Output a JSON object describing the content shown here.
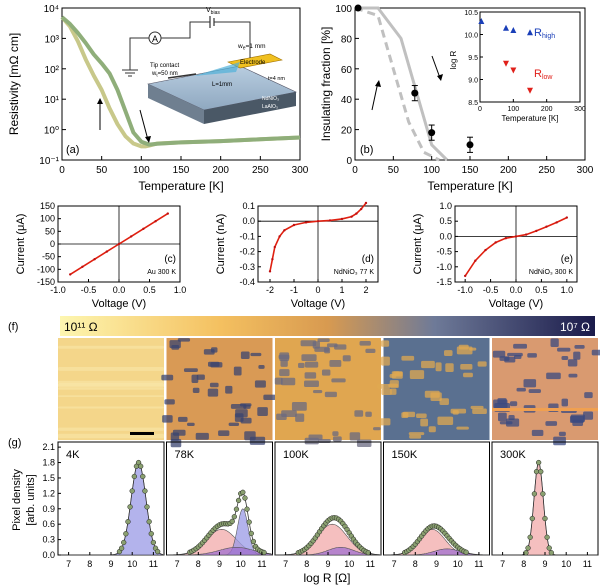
{
  "panel_a": {
    "tag": "(a)",
    "ylabel": "Resistivity [mΩ cm]",
    "xlabel": "Temperature [K]",
    "xticks": [
      "0",
      "50",
      "100",
      "150",
      "200",
      "250",
      "300"
    ],
    "yticks": [
      "10⁻¹",
      "10⁰",
      "10¹",
      "10²",
      "10³",
      "10⁴"
    ],
    "inset": {
      "v_label": "V",
      "v_sub": "bias",
      "amp_label": "A",
      "electrode_label": "Electrode",
      "w_label": "w",
      "w_sub": "e",
      "w_val": "=1 mm",
      "tip_label": "Tip contact",
      "wt_label": "w",
      "wt_sub": "t",
      "wt_val": "=50 nm",
      "l_label": "L=1mm",
      "t_label": "t=4 nm",
      "film_label": "NdNiO₃",
      "sub_label": "LaAlO₃"
    },
    "chart_data": {
      "type": "line",
      "title": "",
      "xlabel": "Temperature [K]",
      "ylabel": "Resistivity [mΩ cm]",
      "xlim": [
        0,
        300
      ],
      "ylim": [
        0.1,
        10000
      ],
      "yscale": "log",
      "series": [
        {
          "name": "cooling",
          "x": [
            0,
            10,
            20,
            30,
            40,
            50,
            60,
            70,
            80,
            90,
            100,
            105,
            110,
            115,
            120,
            150,
            200,
            250,
            300
          ],
          "y": [
            5000,
            2500,
            800,
            200,
            60,
            20,
            5,
            1.5,
            0.6,
            0.35,
            0.28,
            0.28,
            0.3,
            0.32,
            0.35,
            0.38,
            0.42,
            0.48,
            0.55
          ]
        },
        {
          "name": "warming",
          "x": [
            0,
            10,
            20,
            30,
            40,
            50,
            60,
            70,
            80,
            90,
            100,
            110,
            120,
            150,
            200,
            250,
            300
          ],
          "y": [
            5000,
            3000,
            1500,
            700,
            300,
            150,
            70,
            20,
            4,
            0.8,
            0.4,
            0.32,
            0.34,
            0.38,
            0.42,
            0.48,
            0.55
          ]
        }
      ]
    }
  },
  "panel_b": {
    "tag": "(b)",
    "ylabel": "Insulating fraction [%]",
    "xlabel": "Temperature [K]",
    "xticks": [
      "0",
      "50",
      "100",
      "150",
      "200",
      "250",
      "300"
    ],
    "yticks": [
      "0",
      "20",
      "40",
      "60",
      "80",
      "100"
    ],
    "chart_data": {
      "type": "scatter",
      "xlim": [
        0,
        300
      ],
      "ylim": [
        0,
        100
      ],
      "points": [
        {
          "x": 4,
          "y": 100,
          "err": 0
        },
        {
          "x": 78,
          "y": 44,
          "err": 5
        },
        {
          "x": 100,
          "y": 18,
          "err": 5
        },
        {
          "x": 150,
          "y": 10,
          "err": 5
        }
      ],
      "curves": [
        {
          "name": "solid",
          "x": [
            0,
            30,
            60,
            80,
            100,
            120
          ],
          "y": [
            100,
            100,
            80,
            45,
            10,
            0
          ]
        },
        {
          "name": "dashed",
          "x": [
            0,
            30,
            50,
            70,
            90,
            110
          ],
          "y": [
            100,
            95,
            60,
            25,
            5,
            0
          ]
        }
      ]
    },
    "inset": {
      "ylabel": "log R",
      "xlabel": "Temperature [K]",
      "xticks": [
        "0",
        "100",
        "200",
        "300"
      ],
      "yticks": [
        "8.5",
        "9.0",
        "9.5",
        "10.0",
        "10.5"
      ],
      "r_high": "R",
      "r_high_sub": "high",
      "r_low": "R",
      "r_low_sub": "low",
      "chart_data": {
        "type": "scatter",
        "xlim": [
          0,
          300
        ],
        "ylim": [
          8.5,
          10.5
        ],
        "series": [
          {
            "name": "R_high",
            "x": [
              4,
              78,
              100,
              150
            ],
            "y": [
              10.3,
              10.15,
              10.1,
              10.05
            ]
          },
          {
            "name": "R_low",
            "x": [
              78,
              100,
              150
            ],
            "y": [
              9.35,
              9.2,
              8.75
            ]
          }
        ]
      }
    }
  },
  "iv_panels": [
    {
      "tag": "(c)",
      "label": "Au 300 K",
      "ylabel": "Current (μA)",
      "xlabel": "Voltage (V)",
      "xticks": [
        "-1.0",
        "-0.5",
        "0.0",
        "0.5",
        "1.0"
      ],
      "yticks": [
        "150",
        "100",
        "50",
        "0",
        "-50",
        "-100",
        "-150"
      ],
      "chart_data": {
        "type": "line",
        "xlim": [
          -1.0,
          1.0
        ],
        "ylim": [
          -150,
          150
        ],
        "x": [
          -0.8,
          -0.6,
          -0.4,
          -0.2,
          0,
          0.2,
          0.4,
          0.6,
          0.8
        ],
        "y": [
          -120,
          -90,
          -60,
          -30,
          0,
          30,
          60,
          90,
          120
        ]
      }
    },
    {
      "tag": "(d)",
      "label": "NdNiO₃ 77 K",
      "ylabel": "Current (nA)",
      "xlabel": "Voltage (V)",
      "xticks": [
        "-2",
        "-1",
        "0",
        "1",
        "2"
      ],
      "yticks": [
        "0.1",
        "0.0",
        "-0.1",
        "-0.2",
        "-0.3",
        "-0.4"
      ],
      "chart_data": {
        "type": "line",
        "xlim": [
          -2.5,
          2.5
        ],
        "ylim": [
          -0.4,
          0.1
        ],
        "x": [
          -2.0,
          -1.9,
          -1.8,
          -1.6,
          -1.4,
          -1.0,
          -0.5,
          0,
          0.5,
          1.0,
          1.4,
          1.6,
          1.8,
          2.0
        ],
        "y": [
          -0.33,
          -0.25,
          -0.17,
          -0.1,
          -0.06,
          -0.025,
          -0.008,
          0,
          0.005,
          0.015,
          0.03,
          0.05,
          0.08,
          0.12
        ]
      }
    },
    {
      "tag": "(e)",
      "label": "NdNiO₃ 300 K",
      "ylabel": "Current (μA)",
      "xlabel": "Voltage (V)",
      "xticks": [
        "-1.0",
        "-0.5",
        "0.0",
        "0.5",
        "1.0"
      ],
      "yticks": [
        "1.0",
        "0.5",
        "0.0",
        "-0.5",
        "-1.0",
        "-1.5"
      ],
      "chart_data": {
        "type": "line",
        "xlim": [
          -1.2,
          1.2
        ],
        "ylim": [
          -1.5,
          1.0
        ],
        "x": [
          -1.0,
          -0.8,
          -0.6,
          -0.4,
          -0.2,
          0,
          0.2,
          0.4,
          0.6,
          0.8,
          1.0
        ],
        "y": [
          -1.3,
          -0.8,
          -0.45,
          -0.2,
          -0.06,
          0,
          0.06,
          0.18,
          0.32,
          0.46,
          0.62
        ]
      }
    }
  ],
  "colorbar": {
    "tag": "(f)",
    "low_label": "10¹¹ Ω",
    "high_label": "10⁷ Ω"
  },
  "maps": [
    "4K",
    "78K",
    "100K",
    "150K",
    "300K"
  ],
  "hist": {
    "tag": "(g)",
    "ylabel_line1": "Pixel density",
    "ylabel_line2": "[arb. units]",
    "xlabel": "log R [Ω]",
    "yticks": [
      "0.0",
      "0.3",
      "0.6",
      "0.9",
      "1.2",
      "1.5",
      "1.8",
      "2.1"
    ],
    "xticks": [
      "7",
      "8",
      "9",
      "10",
      "11"
    ],
    "panels": [
      {
        "label": "4K",
        "chart_data": {
          "type": "area",
          "components": [
            {
              "color": "#9a9ae6",
              "center": 10.3,
              "sigma": 0.35,
              "amp": 1.8
            }
          ]
        }
      },
      {
        "label": "78K",
        "chart_data": {
          "type": "area",
          "components": [
            {
              "color": "#f2aaaa",
              "center": 9.1,
              "sigma": 0.7,
              "amp": 0.5
            },
            {
              "color": "#9a9ae6",
              "center": 10.1,
              "sigma": 0.25,
              "amp": 0.9
            },
            {
              "color": "#a070d0",
              "center": 9.8,
              "sigma": 0.8,
              "amp": 0.15
            }
          ]
        }
      },
      {
        "label": "100K",
        "chart_data": {
          "type": "area",
          "components": [
            {
              "color": "#f2aaaa",
              "center": 9.2,
              "sigma": 0.7,
              "amp": 0.6
            },
            {
              "color": "#a070d0",
              "center": 9.6,
              "sigma": 0.6,
              "amp": 0.15
            }
          ]
        }
      },
      {
        "label": "150K",
        "chart_data": {
          "type": "area",
          "components": [
            {
              "color": "#f2aaaa",
              "center": 8.8,
              "sigma": 0.6,
              "amp": 0.5
            },
            {
              "color": "#a070d0",
              "center": 9.5,
              "sigma": 0.6,
              "amp": 0.12
            }
          ]
        }
      },
      {
        "label": "300K",
        "chart_data": {
          "type": "area",
          "components": [
            {
              "color": "#f2aaaa",
              "center": 8.7,
              "sigma": 0.22,
              "amp": 1.8
            }
          ]
        }
      }
    ]
  }
}
